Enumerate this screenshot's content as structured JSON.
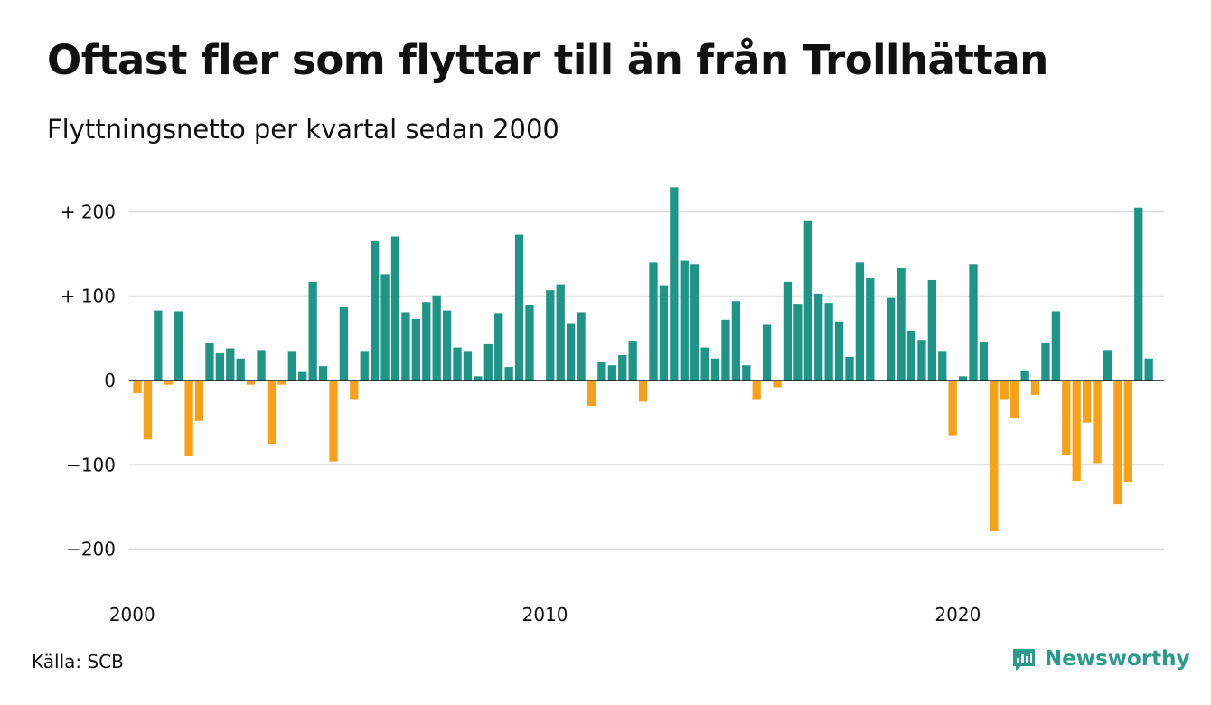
{
  "title": "Oftast fler som flyttar till än från Trollhättan",
  "subtitle": "Flyttningsnetto per kvartal sedan 2000",
  "source": "Källa: SCB",
  "brand": {
    "name": "Newsworthy",
    "icon": "newsworthy-logo-icon",
    "color": "#2a9b8b"
  },
  "colors": {
    "positive": "#1e9586",
    "negative": "#f7a11a",
    "grid": "#dddddd",
    "zero": "#111111"
  },
  "chart_data": {
    "type": "bar",
    "title": "Oftast fler som flyttar till än från Trollhättan",
    "subtitle": "Flyttningsnetto per kvartal sedan 2000",
    "xlabel": "",
    "ylabel": "",
    "x_start": "2000 Q1",
    "x_ticks": [
      "2000",
      "2010",
      "2020"
    ],
    "y_ticks": [
      {
        "value": 200,
        "label": "+ 200"
      },
      {
        "value": 100,
        "label": "+ 100"
      },
      {
        "value": 0,
        "label": "0"
      },
      {
        "value": -100,
        "label": "−100"
      },
      {
        "value": -200,
        "label": "−200"
      }
    ],
    "ylim": [
      -228,
      228
    ],
    "grid": true,
    "series": [
      {
        "values": [
          -15,
          -70,
          83,
          -5,
          82,
          -90,
          -48,
          44,
          33,
          38,
          26,
          -5,
          36,
          -75,
          -5,
          35,
          10,
          117,
          17,
          -96,
          87,
          -22,
          35,
          165,
          126,
          171,
          81,
          73,
          93,
          101,
          83,
          39,
          35,
          5,
          43,
          80,
          16,
          173,
          89,
          0,
          107,
          114,
          68,
          81,
          -30,
          22,
          18,
          30,
          47,
          -25,
          140,
          113,
          229,
          142,
          138,
          39,
          26,
          72,
          94,
          18,
          -22,
          66,
          -8,
          117,
          91,
          190,
          103,
          92,
          70,
          28,
          140,
          121,
          0,
          98,
          133,
          59,
          48,
          119,
          35,
          -65,
          5,
          138,
          46,
          -178,
          -22,
          -44,
          12,
          -17,
          44,
          82,
          -88,
          -119,
          -50,
          -98,
          36,
          -147,
          -120,
          205,
          26
        ]
      }
    ]
  }
}
